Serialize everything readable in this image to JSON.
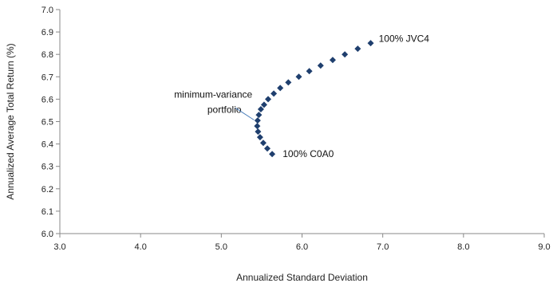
{
  "chart_data": {
    "type": "scatter",
    "xlabel": "Annualized Standard Deviation",
    "ylabel": "Annualized Average Total Return (%)",
    "xlim": [
      3.0,
      9.0
    ],
    "ylim": [
      6.0,
      7.0
    ],
    "x_ticks": [
      "3.0",
      "4.0",
      "5.0",
      "6.0",
      "7.0",
      "8.0",
      "9.0"
    ],
    "y_ticks": [
      "6.0",
      "6.1",
      "6.2",
      "6.3",
      "6.4",
      "6.5",
      "6.6",
      "6.7",
      "6.8",
      "6.9",
      "7.0"
    ],
    "grid": false,
    "marker_color": "#1f3f6e",
    "series": [
      {
        "points": [
          {
            "x": 5.63,
            "y": 6.355
          },
          {
            "x": 5.57,
            "y": 6.38
          },
          {
            "x": 5.52,
            "y": 6.405
          },
          {
            "x": 5.48,
            "y": 6.43
          },
          {
            "x": 5.455,
            "y": 6.455
          },
          {
            "x": 5.445,
            "y": 6.48
          },
          {
            "x": 5.45,
            "y": 6.505
          },
          {
            "x": 5.465,
            "y": 6.53
          },
          {
            "x": 5.49,
            "y": 6.555
          },
          {
            "x": 5.53,
            "y": 6.575
          },
          {
            "x": 5.58,
            "y": 6.6
          },
          {
            "x": 5.65,
            "y": 6.625
          },
          {
            "x": 5.73,
            "y": 6.65
          },
          {
            "x": 5.83,
            "y": 6.675
          },
          {
            "x": 5.96,
            "y": 6.7
          },
          {
            "x": 6.09,
            "y": 6.725
          },
          {
            "x": 6.23,
            "y": 6.75
          },
          {
            "x": 6.38,
            "y": 6.775
          },
          {
            "x": 6.53,
            "y": 6.8
          },
          {
            "x": 6.69,
            "y": 6.825
          },
          {
            "x": 6.85,
            "y": 6.85
          }
        ]
      }
    ],
    "annotations": [
      {
        "text": "100% JVC4",
        "x": 6.95,
        "y": 6.87
      },
      {
        "text": "100% C0A0",
        "x": 5.76,
        "y": 6.355
      },
      {
        "lines": [
          "minimum-variance",
          "portfolio"
        ],
        "x": 4.9,
        "y": 6.6,
        "arrow_to": {
          "x": 5.445,
          "y": 6.5
        }
      }
    ]
  }
}
